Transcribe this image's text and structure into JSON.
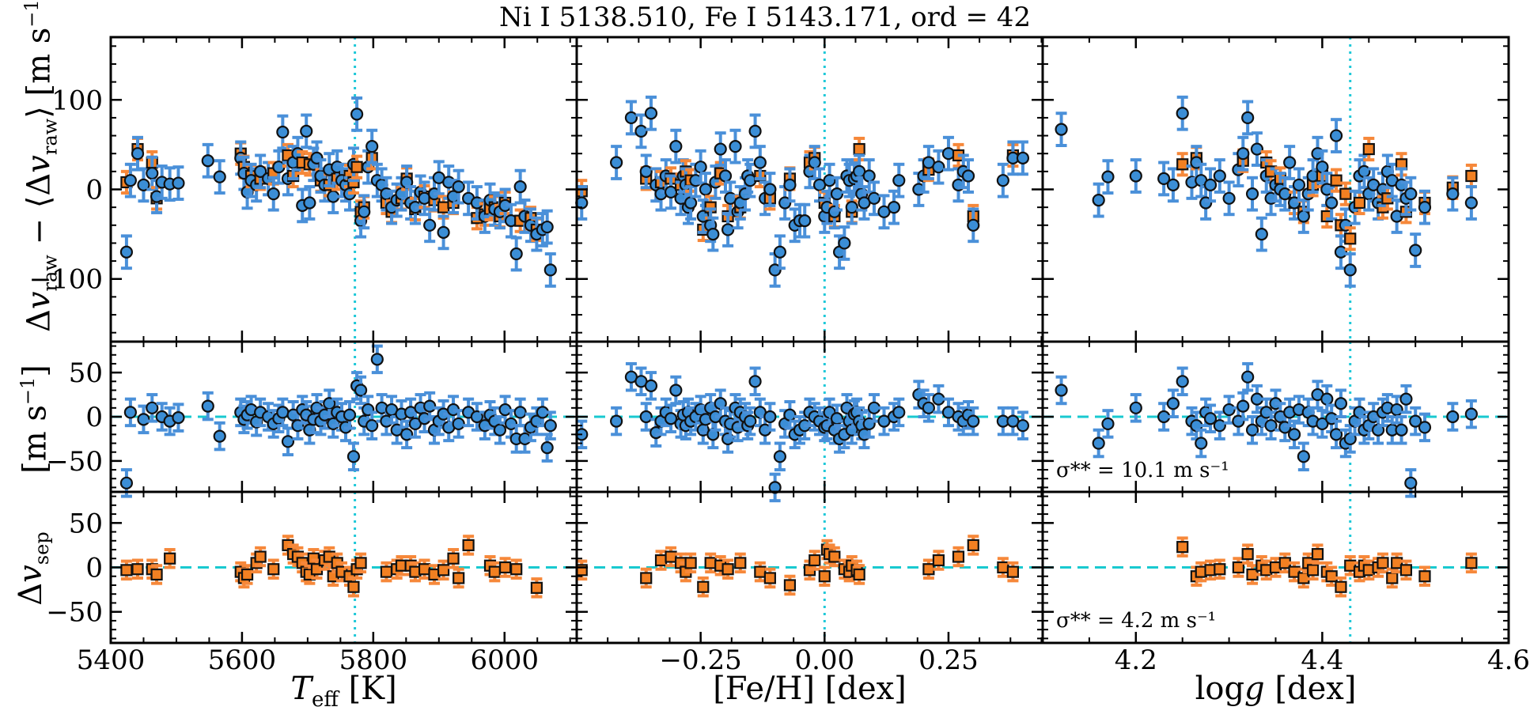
{
  "title": "Ni I 5138.510, Fe I 5143.171, ord = 42",
  "colors": {
    "blue": "#3b8ed6",
    "blue_err": "#4a90d9",
    "orange": "#f28022",
    "orange_err": "#f6883a",
    "cyan_line": "#1ec8d8",
    "dash_line": "#19c9d0",
    "edge": "#111111"
  },
  "chart_data": {
    "type": "scatter",
    "columns": [
      {
        "key": "teff",
        "xlabel": "T_eff [K]",
        "xlim": [
          5400,
          6110
        ],
        "ticks": [
          5400,
          5600,
          5800,
          6000
        ],
        "tick_labels": [
          "5400",
          "5600",
          "5800",
          "6000"
        ],
        "solar": 5772
      },
      {
        "key": "feh",
        "xlabel": "[Fe/H] [dex]",
        "xlim": [
          -0.5,
          0.44
        ],
        "ticks": [
          -0.25,
          0.0,
          0.25
        ],
        "tick_labels": [
          "−0.25",
          "0.00",
          "0.25"
        ],
        "solar": 0.0
      },
      {
        "key": "logg",
        "xlabel": "log g [dex]",
        "xlim": [
          4.1,
          4.6
        ],
        "ticks": [
          4.2,
          4.4,
          4.6
        ],
        "tick_labels": [
          "4.2",
          "4.4",
          "4.6"
        ],
        "solar": 4.43
      }
    ],
    "rows": [
      {
        "key": "raw",
        "ylabel": "Δv_raw − ⟨Δv_raw⟩ [m s⁻¹]",
        "ylim": [
          -170,
          170
        ],
        "ticks": [
          -100,
          0,
          100
        ],
        "tick_labels": [
          "−100",
          "0",
          "100"
        ]
      },
      {
        "key": "pair",
        "ylabel": "[m s⁻¹]",
        "ylim": [
          -85,
          85
        ],
        "ticks": [
          -50,
          0,
          50
        ],
        "tick_labels": [
          "−50",
          "0",
          "50"
        ],
        "sigma": "σ** = 10.1 m s⁻¹"
      },
      {
        "key": "sep",
        "ylabel": "Δv_sep",
        "ylim": [
          -85,
          85
        ],
        "ticks": [
          -50,
          0,
          50
        ],
        "tick_labels": [
          "−50",
          "0",
          "50"
        ],
        "sigma": "σ** = 4.2 m s⁻¹"
      }
    ],
    "series": [
      {
        "name": "blue circles (raw velocity, upper panel; pair velocity, middle panel)",
        "marker": "circle",
        "color": "#3b8ed6"
      },
      {
        "name": "orange squares (raw velocity, upper panel; separation velocity, lower panel)",
        "marker": "square",
        "color": "#f28022"
      }
    ],
    "stars_teff": [
      5424,
      5430,
      5441,
      5450,
      5463,
      5470,
      5478,
      5490,
      5503,
      5548,
      5566,
      5598,
      5603,
      5608,
      5614,
      5622,
      5628,
      5640,
      5648,
      5656,
      5662,
      5670,
      5678,
      5685,
      5692,
      5698,
      5703,
      5709,
      5714,
      5720,
      5726,
      5733,
      5739,
      5745,
      5752,
      5758,
      5764,
      5770,
      5775,
      5781,
      5786,
      5792,
      5798,
      5806,
      5813,
      5820,
      5828,
      5836,
      5843,
      5851,
      5857,
      5864,
      5872,
      5878,
      5886,
      5893,
      5900,
      5907,
      5915,
      5922,
      5930,
      5945,
      5958,
      5970,
      5978,
      5985,
      5993,
      6001,
      6010,
      6018,
      6024,
      6031,
      6040,
      6049,
      6058,
      6065,
      6070
    ],
    "raw_blue": [
      -70,
      10,
      40,
      5,
      18,
      -8,
      8,
      6,
      7,
      32,
      14,
      35,
      18,
      -3,
      10,
      5,
      20,
      12,
      -5,
      25,
      64,
      12,
      30,
      40,
      -18,
      65,
      -15,
      28,
      35,
      15,
      5,
      22,
      -8,
      25,
      10,
      5,
      -5,
      28,
      84,
      -35,
      -25,
      25,
      48,
      10,
      5,
      -5,
      -20,
      -12,
      -5,
      8,
      -15,
      -20,
      -3,
      -10,
      -40,
      -5,
      13,
      -48,
      8,
      -8,
      3,
      -10,
      -15,
      -30,
      -12,
      -22,
      -25,
      -18,
      -35,
      -72,
      3,
      -30,
      -40,
      -50,
      -45,
      -42,
      -90
    ],
    "raw_orange": [
      8,
      null,
      45,
      null,
      30,
      -10,
      null,
      null,
      null,
      null,
      null,
      40,
      25,
      null,
      15,
      null,
      12,
      null,
      18,
      null,
      null,
      38,
      15,
      null,
      30,
      null,
      28,
      null,
      null,
      10,
      null,
      5,
      null,
      12,
      null,
      null,
      15,
      8,
      25,
      -25,
      -20,
      null,
      35,
      null,
      null,
      -15,
      -25,
      null,
      -10,
      12,
      null,
      -22,
      null,
      -8,
      null,
      -12,
      null,
      -20,
      null,
      -15,
      null,
      null,
      -32,
      -28,
      -22,
      -20,
      -30,
      -15,
      null,
      null,
      -35,
      null,
      -32,
      -45,
      null,
      null,
      null
    ],
    "pair": [
      -75,
      5,
      null,
      -3,
      10,
      null,
      0,
      -5,
      -1,
      12,
      -22,
      5,
      -3,
      2,
      8,
      -6,
      5,
      0,
      -8,
      -2,
      5,
      -28,
      2,
      -10,
      8,
      2,
      -15,
      -3,
      10,
      -5,
      2,
      15,
      -8,
      5,
      0,
      -12,
      2,
      -45,
      35,
      30,
      -5,
      8,
      -10,
      65,
      10,
      -5,
      8,
      -15,
      3,
      -20,
      5,
      -8,
      10,
      -2,
      12,
      -15,
      -5,
      3,
      -12,
      8,
      -8,
      5,
      0,
      -10,
      2,
      -5,
      -15,
      8,
      -8,
      -25,
      5,
      -25,
      -12,
      -5,
      5,
      -35,
      -10
    ],
    "sep": [
      -3,
      null,
      -2,
      null,
      -2,
      -8,
      null,
      10,
      null,
      null,
      null,
      -5,
      -12,
      -8,
      null,
      5,
      12,
      null,
      -2,
      null,
      null,
      25,
      15,
      12,
      5,
      -5,
      -8,
      10,
      -2,
      null,
      8,
      12,
      -10,
      5,
      -5,
      null,
      -10,
      -22,
      -2,
      5,
      null,
      null,
      null,
      null,
      null,
      -5,
      null,
      -2,
      2,
      null,
      2,
      -5,
      null,
      -2,
      null,
      -8,
      null,
      -3,
      null,
      10,
      -12,
      25,
      null,
      null,
      2,
      -5,
      null,
      0,
      null,
      -2,
      null,
      null,
      null,
      -23,
      null,
      null,
      null
    ],
    "stars_feh": [
      -0.49,
      -0.49,
      -0.42,
      -0.39,
      -0.37,
      -0.36,
      -0.35,
      -0.34,
      -0.33,
      -0.32,
      -0.31,
      -0.3,
      -0.29,
      -0.285,
      -0.28,
      -0.275,
      -0.27,
      -0.26,
      -0.25,
      -0.245,
      -0.24,
      -0.23,
      -0.225,
      -0.22,
      -0.21,
      -0.2,
      -0.195,
      -0.19,
      -0.18,
      -0.175,
      -0.17,
      -0.16,
      -0.155,
      -0.15,
      -0.14,
      -0.13,
      -0.12,
      -0.11,
      -0.1,
      -0.09,
      -0.08,
      -0.07,
      -0.06,
      -0.05,
      -0.04,
      -0.03,
      -0.02,
      -0.01,
      0.0,
      0.005,
      0.01,
      0.02,
      0.025,
      0.03,
      0.04,
      0.045,
      0.05,
      0.055,
      0.06,
      0.065,
      0.07,
      0.075,
      0.08,
      0.09,
      0.1,
      0.12,
      0.14,
      0.15,
      0.19,
      0.2,
      0.21,
      0.23,
      0.25,
      0.27,
      0.28,
      0.29,
      0.3,
      0.36,
      0.38,
      0.4
    ],
    "raw_blue_feh": [
      -15,
      null,
      30,
      80,
      65,
      20,
      85,
      5,
      -5,
      15,
      -3,
      48,
      -10,
      15,
      5,
      -20,
      -15,
      10,
      25,
      -30,
      0,
      -40,
      -50,
      8,
      45,
      15,
      -45,
      -10,
      48,
      -25,
      -15,
      -5,
      15,
      10,
      65,
      30,
      -10,
      0,
      -90,
      -70,
      -15,
      5,
      -40,
      -35,
      -35,
      20,
      30,
      5,
      -30,
      -20,
      10,
      -25,
      -5,
      -70,
      -60,
      15,
      10,
      -20,
      12,
      15,
      20,
      -5,
      -15,
      15,
      -10,
      -25,
      -20,
      10,
      0,
      15,
      30,
      25,
      40,
      5,
      20,
      15,
      -40,
      10,
      35,
      35
    ],
    "raw_orange_feh": [
      -2,
      null,
      null,
      null,
      null,
      12,
      null,
      null,
      8,
      null,
      12,
      null,
      5,
      null,
      20,
      null,
      10,
      null,
      null,
      -45,
      null,
      -20,
      null,
      null,
      18,
      null,
      -30,
      null,
      null,
      null,
      -20,
      null,
      null,
      null,
      null,
      15,
      null,
      -10,
      null,
      null,
      null,
      12,
      null,
      null,
      null,
      30,
      35,
      null,
      -15,
      null,
      null,
      -30,
      null,
      null,
      null,
      null,
      null,
      -25,
      null,
      null,
      45,
      null,
      null,
      null,
      null,
      null,
      null,
      null,
      null,
      null,
      22,
      null,
      null,
      38,
      null,
      null,
      -30,
      null,
      38,
      null
    ],
    "pair_feh": [
      -20,
      null,
      -5,
      45,
      40,
      0,
      35,
      -18,
      -5,
      5,
      -2,
      30,
      -8,
      2,
      -10,
      5,
      -5,
      0,
      8,
      -15,
      -3,
      10,
      -20,
      0,
      15,
      -5,
      -25,
      -8,
      10,
      -12,
      5,
      0,
      -10,
      -5,
      40,
      5,
      -15,
      0,
      -80,
      -45,
      -8,
      2,
      -20,
      -15,
      -10,
      5,
      0,
      -5,
      -12,
      -10,
      5,
      -15,
      -2,
      -25,
      -20,
      10,
      -5,
      -15,
      3,
      5,
      -5,
      -10,
      -20,
      -8,
      10,
      -5,
      0,
      5,
      25,
      15,
      10,
      20,
      5,
      0,
      -5,
      2,
      -5,
      -5,
      -5,
      -10
    ],
    "sep_feh": [
      -3,
      null,
      null,
      null,
      null,
      -12,
      null,
      null,
      8,
      null,
      12,
      null,
      5,
      null,
      -5,
      null,
      5,
      null,
      null,
      -22,
      null,
      5,
      null,
      null,
      2,
      null,
      -2,
      null,
      null,
      null,
      5,
      null,
      null,
      null,
      null,
      -5,
      null,
      -12,
      null,
      null,
      null,
      -20,
      null,
      null,
      null,
      -3,
      8,
      null,
      -10,
      20,
      15,
      12,
      null,
      null,
      -2,
      null,
      -5,
      2,
      null,
      -3,
      -8,
      null,
      null,
      null,
      null,
      null,
      null,
      null,
      null,
      null,
      -2,
      8,
      null,
      12,
      null,
      null,
      25,
      0,
      -5,
      null
    ],
    "stars_logg": [
      4.12,
      4.16,
      4.17,
      4.2,
      4.23,
      4.24,
      4.25,
      4.26,
      4.265,
      4.27,
      4.275,
      4.28,
      4.29,
      4.3,
      4.31,
      4.315,
      4.32,
      4.325,
      4.33,
      4.335,
      4.34,
      4.345,
      4.35,
      4.355,
      4.36,
      4.365,
      4.37,
      4.375,
      4.38,
      4.385,
      4.39,
      4.395,
      4.4,
      4.405,
      4.41,
      4.415,
      4.42,
      4.425,
      4.43,
      4.435,
      4.44,
      4.445,
      4.45,
      4.455,
      4.46,
      4.465,
      4.47,
      4.475,
      4.48,
      4.485,
      4.49,
      4.495,
      4.5,
      4.51,
      4.54,
      4.56
    ],
    "raw_blue_logg": [
      67,
      -12,
      14,
      15,
      12,
      5,
      85,
      8,
      30,
      10,
      -15,
      5,
      15,
      -10,
      22,
      40,
      80,
      -5,
      45,
      -50,
      15,
      -10,
      5,
      0,
      -5,
      30,
      -15,
      5,
      -30,
      -5,
      15,
      40,
      25,
      0,
      -15,
      60,
      -70,
      -40,
      -90,
      -20,
      15,
      20,
      -5,
      5,
      -15,
      0,
      20,
      10,
      -30,
      5,
      -10,
      -5,
      -68,
      -20,
      -5,
      -15
    ],
    "raw_orange_logg": [
      null,
      null,
      null,
      null,
      null,
      null,
      28,
      null,
      35,
      null,
      null,
      null,
      null,
      null,
      null,
      32,
      null,
      null,
      null,
      null,
      30,
      20,
      null,
      12,
      null,
      null,
      -15,
      null,
      -25,
      null,
      5,
      null,
      15,
      -30,
      null,
      10,
      -40,
      -5,
      -55,
      null,
      -15,
      null,
      45,
      null,
      null,
      -20,
      -10,
      null,
      null,
      28,
      -25,
      null,
      null,
      -15,
      2,
      15
    ],
    "pair_logg": [
      30,
      -30,
      -8,
      10,
      0,
      15,
      40,
      -5,
      -10,
      -30,
      5,
      -2,
      -10,
      8,
      -5,
      12,
      45,
      -15,
      20,
      -5,
      5,
      -10,
      15,
      0,
      -12,
      5,
      -20,
      8,
      -45,
      5,
      -5,
      25,
      -8,
      20,
      -2,
      -20,
      15,
      -30,
      -25,
      -5,
      5,
      -15,
      -10,
      0,
      -15,
      5,
      10,
      -15,
      8,
      -15,
      20,
      -75,
      -5,
      -12,
      0,
      3
    ],
    "sep_logg": [
      null,
      null,
      null,
      null,
      null,
      null,
      23,
      null,
      -10,
      -5,
      null,
      -3,
      -2,
      null,
      0,
      null,
      15,
      -8,
      null,
      2,
      -3,
      null,
      0,
      null,
      5,
      null,
      -5,
      null,
      -12,
      5,
      -3,
      15,
      null,
      -5,
      -10,
      null,
      -22,
      null,
      2,
      null,
      -5,
      2,
      -3,
      null,
      0,
      5,
      null,
      -12,
      5,
      null,
      -3,
      null,
      null,
      -10,
      null,
      5
    ]
  }
}
